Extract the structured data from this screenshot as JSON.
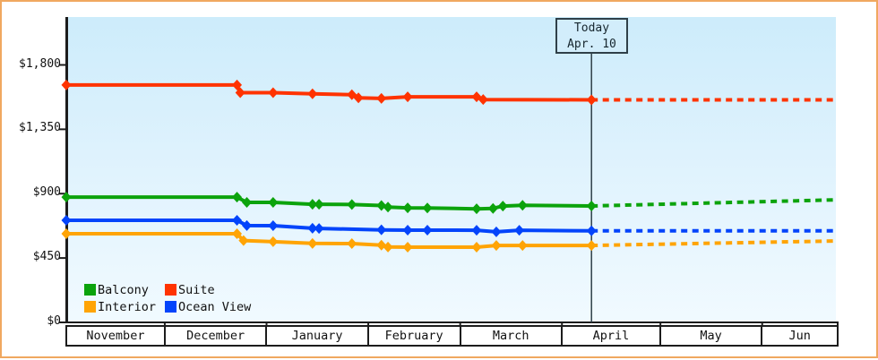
{
  "window": {
    "frame_border_color": "#f0a860",
    "axis_color": "#1c1c1c",
    "today_line_color": "#2f4049"
  },
  "today_flag": {
    "line1": "Today",
    "line2": "Apr. 10"
  },
  "chart_data": {
    "type": "line",
    "title": "",
    "xlabel": "",
    "ylabel": "",
    "grid": false,
    "legend_position": "bottom-left",
    "y_axis": {
      "ticks": [
        {
          "label": "$0",
          "value": 0
        },
        {
          "label": "$450",
          "value": 450
        },
        {
          "label": "$900",
          "value": 900
        },
        {
          "label": "$1,350",
          "value": 1350
        },
        {
          "label": "$1,800",
          "value": 1800
        }
      ],
      "range": [
        0,
        1800
      ]
    },
    "x_axis": {
      "unit": "day-of-season (0 = Nov 1)",
      "months": [
        {
          "label": "November",
          "days": 30
        },
        {
          "label": "December",
          "days": 31
        },
        {
          "label": "January",
          "days": 31
        },
        {
          "label": "February",
          "days": 28
        },
        {
          "label": "March",
          "days": 31
        },
        {
          "label": "April",
          "days": 30
        },
        {
          "label": "May",
          "days": 31
        },
        {
          "label": "Jun",
          "days": 23
        }
      ]
    },
    "today": {
      "day": 160,
      "date_label": "Apr. 10"
    },
    "series": [
      {
        "name": "Suite",
        "color": "#ff3300",
        "points": [
          [
            0,
            1660
          ],
          [
            52,
            1660
          ],
          [
            53,
            1606
          ],
          [
            63,
            1606
          ],
          [
            75,
            1598
          ],
          [
            87,
            1592
          ],
          [
            89,
            1570
          ],
          [
            96,
            1566
          ],
          [
            104,
            1577
          ],
          [
            125,
            1577
          ],
          [
            127,
            1558
          ],
          [
            160,
            1556
          ]
        ],
        "projection": [
          [
            160,
            1556
          ],
          [
            235,
            1556
          ]
        ]
      },
      {
        "name": "Balcony",
        "color": "#0ca30c",
        "points": [
          [
            0,
            876
          ],
          [
            52,
            876
          ],
          [
            55,
            839
          ],
          [
            63,
            839
          ],
          [
            75,
            826
          ],
          [
            77,
            826
          ],
          [
            87,
            824
          ],
          [
            96,
            817
          ],
          [
            98,
            806
          ],
          [
            104,
            801
          ],
          [
            110,
            800
          ],
          [
            125,
            794
          ],
          [
            130,
            797
          ],
          [
            133,
            813
          ],
          [
            139,
            819
          ],
          [
            160,
            814
          ]
        ],
        "projection": [
          [
            160,
            814
          ],
          [
            235,
            857
          ]
        ]
      },
      {
        "name": "Ocean View",
        "color": "#0344fb",
        "points": [
          [
            0,
            714
          ],
          [
            52,
            714
          ],
          [
            55,
            677
          ],
          [
            63,
            676
          ],
          [
            75,
            658
          ],
          [
            77,
            657
          ],
          [
            96,
            647
          ],
          [
            104,
            645
          ],
          [
            110,
            645
          ],
          [
            125,
            644
          ],
          [
            131,
            633
          ],
          [
            138,
            644
          ],
          [
            160,
            640
          ]
        ],
        "projection": [
          [
            160,
            640
          ],
          [
            235,
            640
          ]
        ]
      },
      {
        "name": "Interior",
        "color": "#ffa405",
        "points": [
          [
            0,
            620
          ],
          [
            52,
            620
          ],
          [
            54,
            572
          ],
          [
            63,
            564
          ],
          [
            75,
            552
          ],
          [
            87,
            551
          ],
          [
            96,
            540
          ],
          [
            98,
            527
          ],
          [
            104,
            526
          ],
          [
            125,
            526
          ],
          [
            131,
            538
          ],
          [
            139,
            538
          ],
          [
            160,
            538
          ]
        ],
        "projection": [
          [
            160,
            538
          ],
          [
            235,
            570
          ]
        ]
      }
    ],
    "legend": [
      {
        "label": "Balcony",
        "color": "#0ca30c"
      },
      {
        "label": "Interior",
        "color": "#ffa405"
      },
      {
        "label": "Suite",
        "color": "#ff3300"
      },
      {
        "label": "Ocean View",
        "color": "#0344fb"
      }
    ]
  }
}
